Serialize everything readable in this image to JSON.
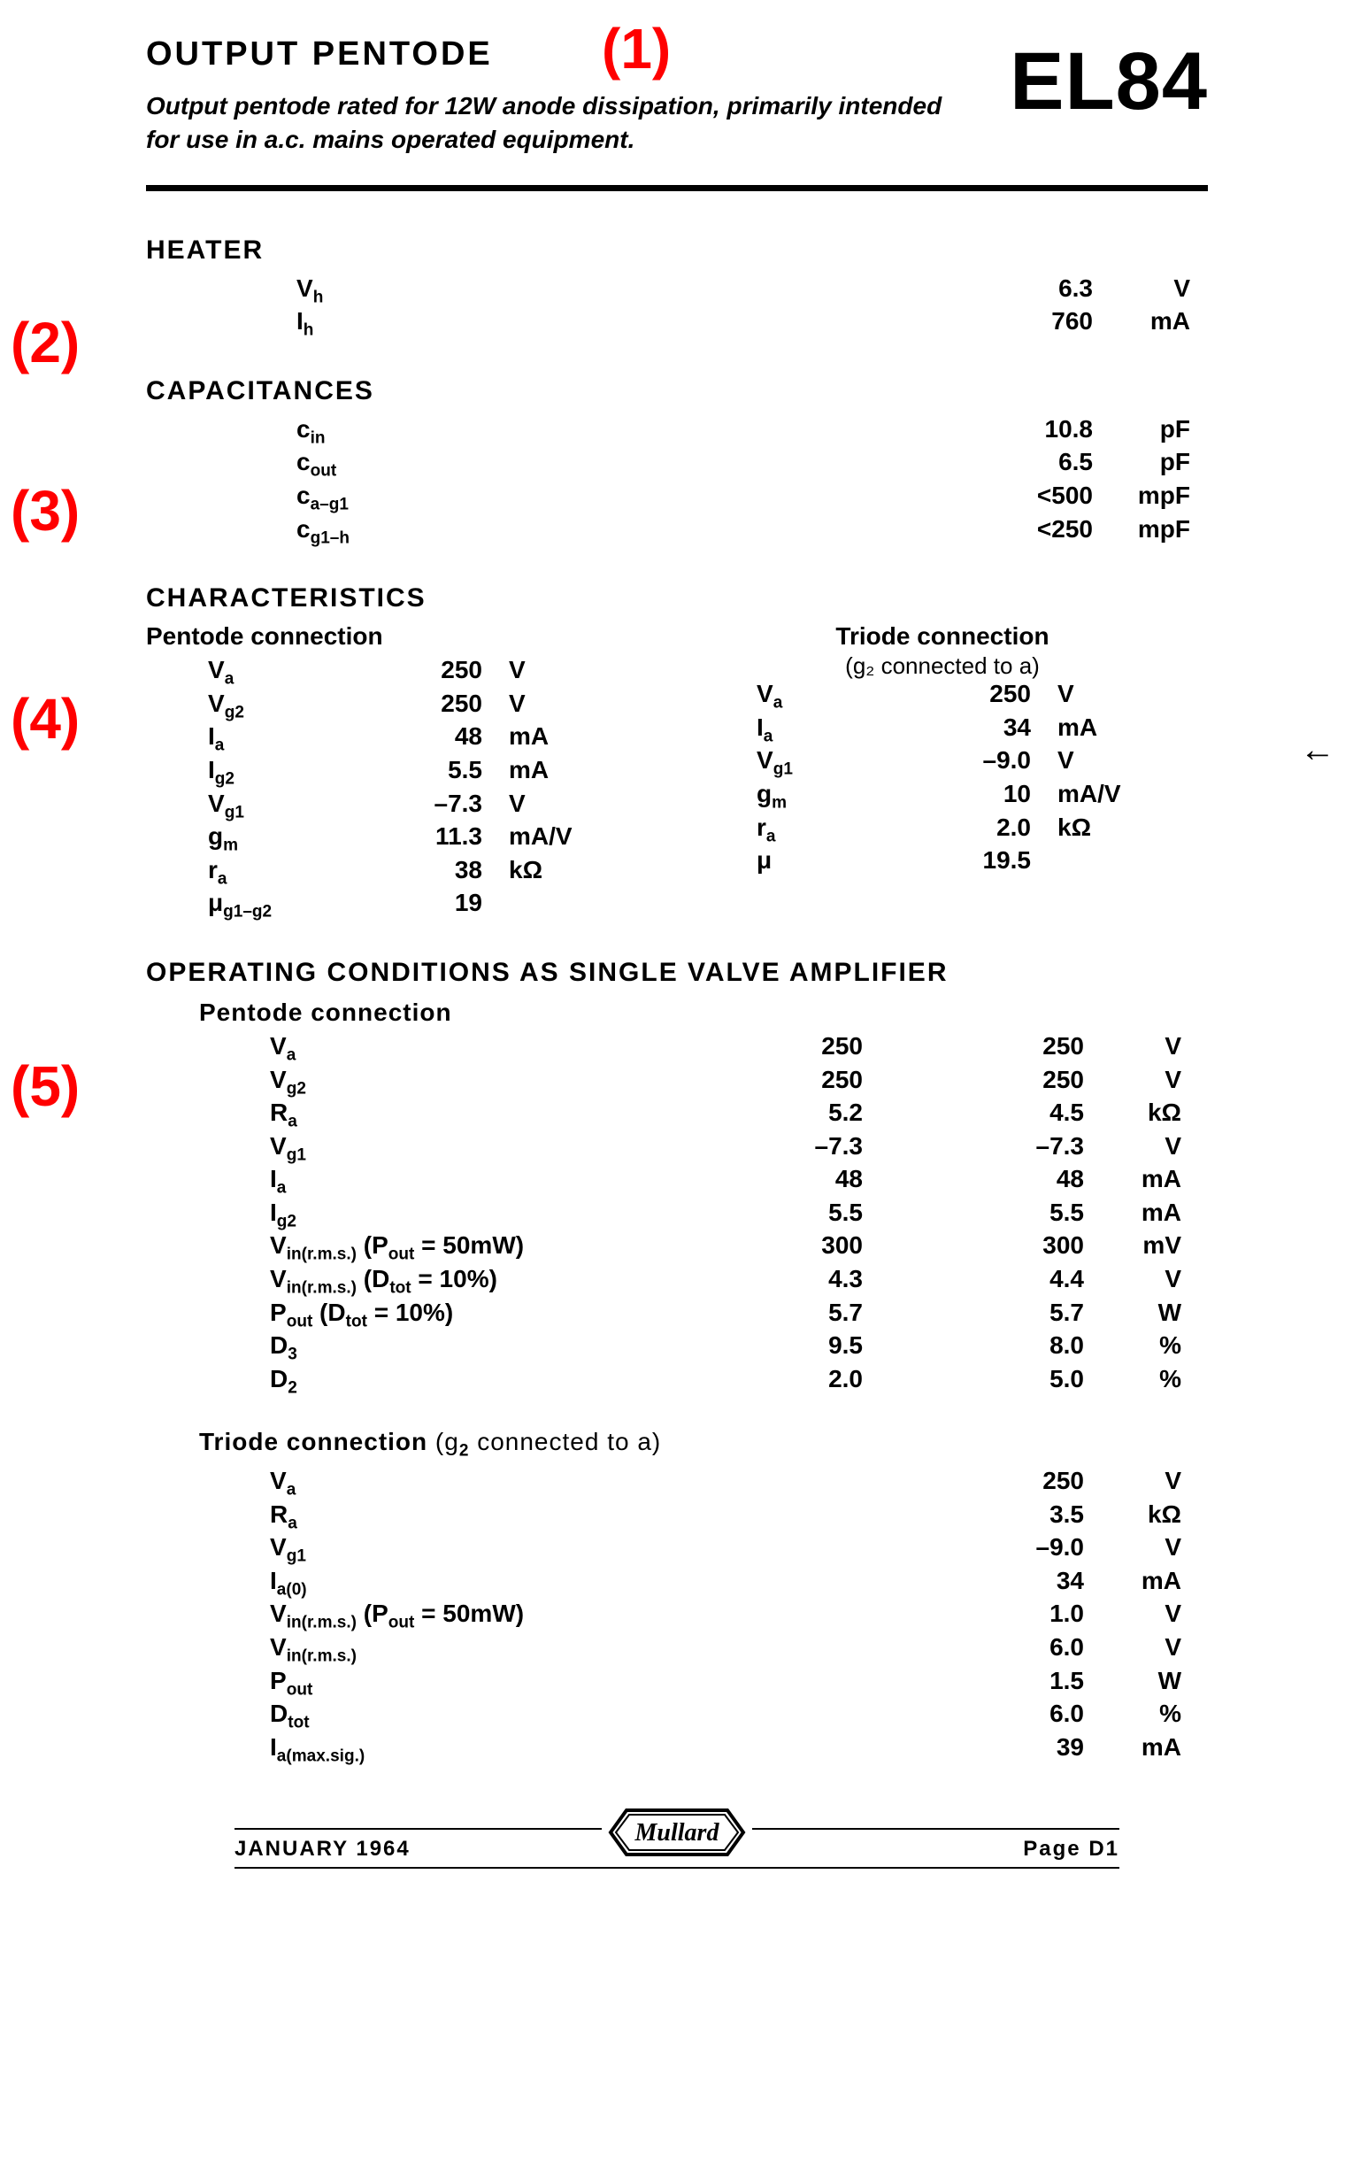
{
  "annotations": {
    "a1": "(1)",
    "a2": "(2)",
    "a3": "(3)",
    "a4": "(4)",
    "a5": "(5)"
  },
  "header": {
    "title": "OUTPUT  PENTODE",
    "description": "Output pentode rated for 12W anode dissipation, primarily intended for use in a.c. mains operated equipment.",
    "part_number": "EL84"
  },
  "heater": {
    "title": "HEATER",
    "rows": [
      {
        "sym_html": "V<sub>h</sub>",
        "value": "6.3",
        "unit": "V"
      },
      {
        "sym_html": "I<sub>h</sub>",
        "value": "760",
        "unit": "mA"
      }
    ]
  },
  "capacitances": {
    "title": "CAPACITANCES",
    "rows": [
      {
        "sym_html": "c<sub>in</sub>",
        "value": "10.8",
        "unit": "pF"
      },
      {
        "sym_html": "c<sub>out</sub>",
        "value": "6.5",
        "unit": "pF"
      },
      {
        "sym_html": "c<sub>a–g1</sub>",
        "value": "<500",
        "unit": "mpF"
      },
      {
        "sym_html": "c<sub>g1–h</sub>",
        "value": "<250",
        "unit": "mpF"
      }
    ]
  },
  "characteristics": {
    "title": "CHARACTERISTICS",
    "pentode": {
      "heading": "Pentode connection",
      "rows": [
        {
          "sym_html": "V<sub>a</sub>",
          "value": "250",
          "unit": "V"
        },
        {
          "sym_html": "V<sub>g2</sub>",
          "value": "250",
          "unit": "V"
        },
        {
          "sym_html": "I<sub>a</sub>",
          "value": "48",
          "unit": "mA"
        },
        {
          "sym_html": "I<sub>g2</sub>",
          "value": "5.5",
          "unit": "mA"
        },
        {
          "sym_html": "V<sub>g1</sub>",
          "value": "–7.3",
          "unit": "V"
        },
        {
          "sym_html": "g<sub>m</sub>",
          "value": "11.3",
          "unit": "mA/V"
        },
        {
          "sym_html": "r<sub>a</sub>",
          "value": "38",
          "unit": "kΩ"
        },
        {
          "sym_html": "μ<sub>g1–g2</sub>",
          "value": "19",
          "unit": ""
        }
      ]
    },
    "triode": {
      "heading": "Triode connection",
      "subheading": "(g₂ connected to a)",
      "rows": [
        {
          "sym_html": "V<sub>a</sub>",
          "value": "250",
          "unit": "V"
        },
        {
          "sym_html": "I<sub>a</sub>",
          "value": "34",
          "unit": "mA"
        },
        {
          "sym_html": "V<sub>g1</sub>",
          "value": "–9.0",
          "unit": "V"
        },
        {
          "sym_html": "g<sub>m</sub>",
          "value": "10",
          "unit": "mA/V"
        },
        {
          "sym_html": "r<sub>a</sub>",
          "value": "2.0",
          "unit": "kΩ"
        },
        {
          "sym_html": "μ",
          "value": "19.5",
          "unit": ""
        }
      ]
    }
  },
  "operating": {
    "title": "OPERATING CONDITIONS AS SINGLE VALVE AMPLIFIER",
    "pentode": {
      "heading": "Pentode connection",
      "rows": [
        {
          "sym_html": "V<sub>a</sub>",
          "v1": "250",
          "v2": "250",
          "unit": "V"
        },
        {
          "sym_html": "V<sub>g2</sub>",
          "v1": "250",
          "v2": "250",
          "unit": "V"
        },
        {
          "sym_html": "R<sub>a</sub>",
          "v1": "5.2",
          "v2": "4.5",
          "unit": "kΩ"
        },
        {
          "sym_html": "V<sub>g1</sub>",
          "v1": "–7.3",
          "v2": "–7.3",
          "unit": "V"
        },
        {
          "sym_html": "I<sub>a</sub>",
          "v1": "48",
          "v2": "48",
          "unit": "mA"
        },
        {
          "sym_html": "I<sub>g2</sub>",
          "v1": "5.5",
          "v2": "5.5",
          "unit": "mA"
        },
        {
          "sym_html": "V<sub>in(r.m.s.)</sub> (P<sub>out</sub> = 50mW)",
          "v1": "300",
          "v2": "300",
          "unit": "mV"
        },
        {
          "sym_html": "V<sub>in(r.m.s.)</sub> (D<sub>tot</sub> = 10%)",
          "v1": "4.3",
          "v2": "4.4",
          "unit": "V"
        },
        {
          "sym_html": "P<sub>out</sub> (D<sub>tot</sub> = 10%)",
          "v1": "5.7",
          "v2": "5.7",
          "unit": "W"
        },
        {
          "sym_html": "D<sub>3</sub>",
          "v1": "9.5",
          "v2": "8.0",
          "unit": "%"
        },
        {
          "sym_html": "D<sub>2</sub>",
          "v1": "2.0",
          "v2": "5.0",
          "unit": "%"
        }
      ]
    },
    "triode": {
      "heading_html": "Triode connection <span style='font-weight:400'>(g<sub>2</sub> connected to a)</span>",
      "rows": [
        {
          "sym_html": "V<sub>a</sub>",
          "v2": "250",
          "unit": "V"
        },
        {
          "sym_html": "R<sub>a</sub>",
          "v2": "3.5",
          "unit": "kΩ"
        },
        {
          "sym_html": "V<sub>g1</sub>",
          "v2": "–9.0",
          "unit": "V"
        },
        {
          "sym_html": "I<sub>a(0)</sub>",
          "v2": "34",
          "unit": "mA"
        },
        {
          "sym_html": "V<sub>in(r.m.s.)</sub> (P<sub>out</sub> = 50mW)",
          "v2": "1.0",
          "unit": "V"
        },
        {
          "sym_html": "V<sub>in(r.m.s.)</sub>",
          "v2": "6.0",
          "unit": "V"
        },
        {
          "sym_html": "P<sub>out</sub>",
          "v2": "1.5",
          "unit": "W"
        },
        {
          "sym_html": "D<sub>tot</sub>",
          "v2": "6.0",
          "unit": "%"
        },
        {
          "sym_html": "I<sub>a(max.sig.)</sub>",
          "v2": "39",
          "unit": "mA"
        }
      ]
    }
  },
  "footer": {
    "date": "JANUARY 1964",
    "brand": "Mullard",
    "page": "Page D1"
  }
}
